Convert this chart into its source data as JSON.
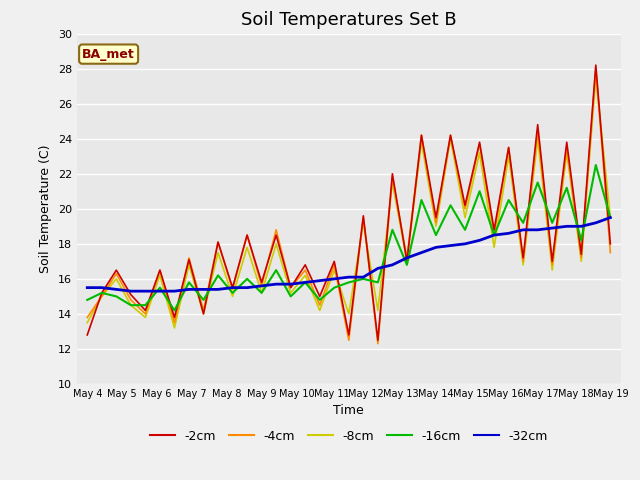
{
  "title": "Soil Temperatures Set B",
  "xlabel": "Time",
  "ylabel": "Soil Temperature (C)",
  "ylim": [
    10,
    30
  ],
  "annotation": "BA_met",
  "x_tick_labels": [
    "May 4",
    "May 5",
    "May 6",
    "May 7",
    "May 8",
    "May 9",
    "May 10",
    "May 11",
    "May 12",
    "May 13",
    "May 14",
    "May 15",
    "May 16",
    "May 17",
    "May 18",
    "May 19"
  ],
  "neg2cm_color": "#cc0000",
  "neg4cm_color": "#ff8c00",
  "neg8cm_color": "#cccc00",
  "neg16cm_color": "#00bb00",
  "neg32cm_color": "#0000cc",
  "neg2cm_y": [
    12.8,
    15.2,
    16.5,
    15.1,
    14.2,
    16.5,
    13.8,
    17.1,
    14.0,
    18.1,
    15.5,
    18.5,
    15.8,
    18.5,
    15.5,
    16.8,
    15.0,
    17.0,
    12.8,
    19.6,
    12.5,
    22.0,
    17.0,
    24.2,
    19.5,
    24.2,
    20.2,
    23.8,
    18.8,
    23.5,
    17.2,
    24.8,
    17.0,
    23.8,
    17.4,
    28.2,
    18.0
  ],
  "neg4cm_y": [
    13.8,
    15.0,
    16.3,
    14.8,
    14.0,
    16.5,
    13.5,
    17.2,
    14.2,
    18.1,
    15.4,
    18.5,
    15.6,
    18.8,
    15.5,
    16.5,
    14.5,
    16.8,
    12.5,
    19.5,
    12.3,
    21.8,
    17.2,
    24.2,
    19.2,
    24.2,
    20.0,
    23.7,
    18.5,
    23.5,
    17.0,
    24.5,
    16.8,
    23.5,
    17.2,
    28.0,
    17.5
  ],
  "neg8cm_y": [
    13.5,
    15.0,
    16.0,
    14.5,
    13.8,
    16.2,
    13.2,
    16.8,
    14.0,
    17.5,
    15.0,
    17.8,
    15.2,
    18.0,
    15.2,
    16.2,
    14.2,
    16.5,
    14.0,
    19.2,
    14.2,
    21.5,
    17.0,
    23.8,
    19.0,
    24.0,
    19.5,
    23.2,
    17.8,
    23.0,
    16.8,
    24.0,
    16.5,
    23.2,
    17.0,
    27.5,
    19.5
  ],
  "neg16cm_y": [
    14.8,
    15.2,
    15.0,
    14.5,
    14.5,
    15.5,
    14.2,
    15.8,
    14.8,
    16.2,
    15.2,
    16.0,
    15.2,
    16.5,
    15.0,
    15.8,
    14.8,
    15.5,
    15.8,
    16.0,
    15.8,
    18.8,
    16.8,
    20.5,
    18.5,
    20.2,
    18.8,
    21.0,
    18.5,
    20.5,
    19.2,
    21.5,
    19.2,
    21.2,
    18.2,
    22.5,
    19.5
  ],
  "neg32cm_y": [
    15.5,
    15.5,
    15.4,
    15.3,
    15.3,
    15.3,
    15.3,
    15.4,
    15.4,
    15.4,
    15.5,
    15.5,
    15.6,
    15.7,
    15.7,
    15.8,
    15.9,
    16.0,
    16.1,
    16.1,
    16.6,
    16.8,
    17.2,
    17.5,
    17.8,
    17.9,
    18.0,
    18.2,
    18.5,
    18.6,
    18.8,
    18.8,
    18.9,
    19.0,
    19.0,
    19.2,
    19.5
  ],
  "plot_bg_color": "#e8e8e8",
  "fig_bg_color": "#f0f0f0",
  "title_fontsize": 13,
  "legend_labels": [
    "-2cm",
    "-4cm",
    "-8cm",
    "-16cm",
    "-32cm"
  ]
}
